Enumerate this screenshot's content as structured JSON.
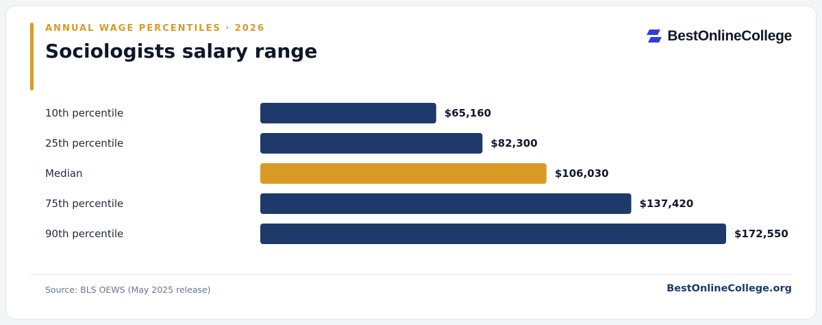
{
  "header": {
    "eyebrow": "ANNUAL WAGE PERCENTILES · 2026",
    "title": "Sociologists salary range"
  },
  "brand": {
    "logo_text": "BestOnlineCollege",
    "footer_text": "BestOnlineCollege.org"
  },
  "footer": {
    "source": "Source: BLS OEWS (May 2025 release)"
  },
  "colors": {
    "bar": "#1e3a6b",
    "highlight": "#d99a26",
    "logo_mark": "#2f3fd6"
  },
  "chart_data": {
    "type": "bar",
    "orientation": "horizontal",
    "categories": [
      "10th percentile",
      "25th percentile",
      "Median",
      "75th percentile",
      "90th percentile"
    ],
    "values": [
      65160,
      82300,
      106030,
      137420,
      172550
    ],
    "value_labels": [
      "$65,160",
      "$82,300",
      "$106,030",
      "$137,420",
      "$172,550"
    ],
    "highlight_category": "Median",
    "xlim": [
      0,
      172550
    ]
  }
}
